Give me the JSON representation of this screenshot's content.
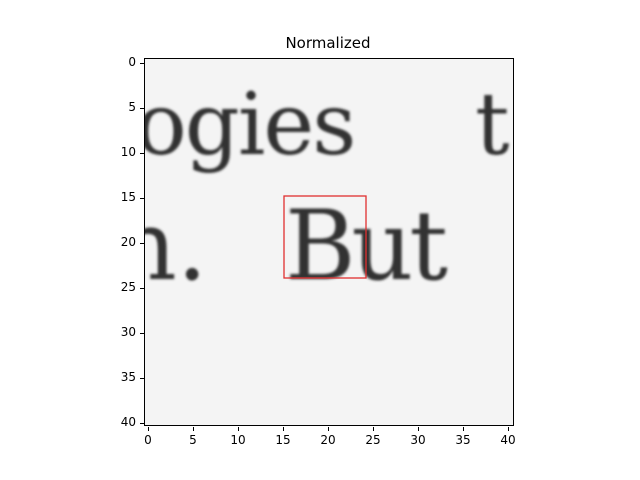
{
  "title": "Normalized",
  "x_ticks": [
    "0",
    "5",
    "10",
    "15",
    "20",
    "25",
    "30",
    "35",
    "40"
  ],
  "y_ticks": [
    "0",
    "5",
    "10",
    "15",
    "20",
    "25",
    "30",
    "35",
    "40"
  ],
  "image_text": {
    "line1": "ogies",
    "line1_edge": "t",
    "line2_left": "h.",
    "line2_right": "But"
  },
  "box": {
    "x": [
      15,
      24
    ],
    "y": [
      15,
      24
    ],
    "color": "#e03030"
  }
}
